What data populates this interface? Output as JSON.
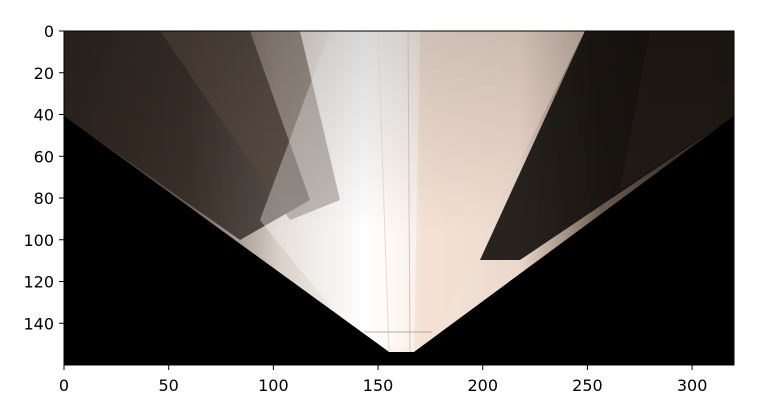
{
  "image": {
    "description_icon": "warped-road-birdseye-image",
    "xlim": [
      0,
      320
    ],
    "ylim": [
      160,
      0
    ],
    "x_ticks": [
      0,
      50,
      100,
      150,
      200,
      250,
      300
    ],
    "y_ticks": [
      0,
      20,
      40,
      60,
      80,
      100,
      120,
      140
    ],
    "x_tick_labels": [
      "0",
      "50",
      "100",
      "150",
      "200",
      "250",
      "300"
    ],
    "y_tick_labels": [
      "0",
      "20",
      "40",
      "60",
      "80",
      "100",
      "120",
      "140"
    ],
    "colors": {
      "background_mask": "#000000",
      "road_light": "#f2e6dc",
      "road_mid": "#c9b3a3",
      "dark_brown": "#2a2018",
      "frame": "#000000"
    }
  }
}
